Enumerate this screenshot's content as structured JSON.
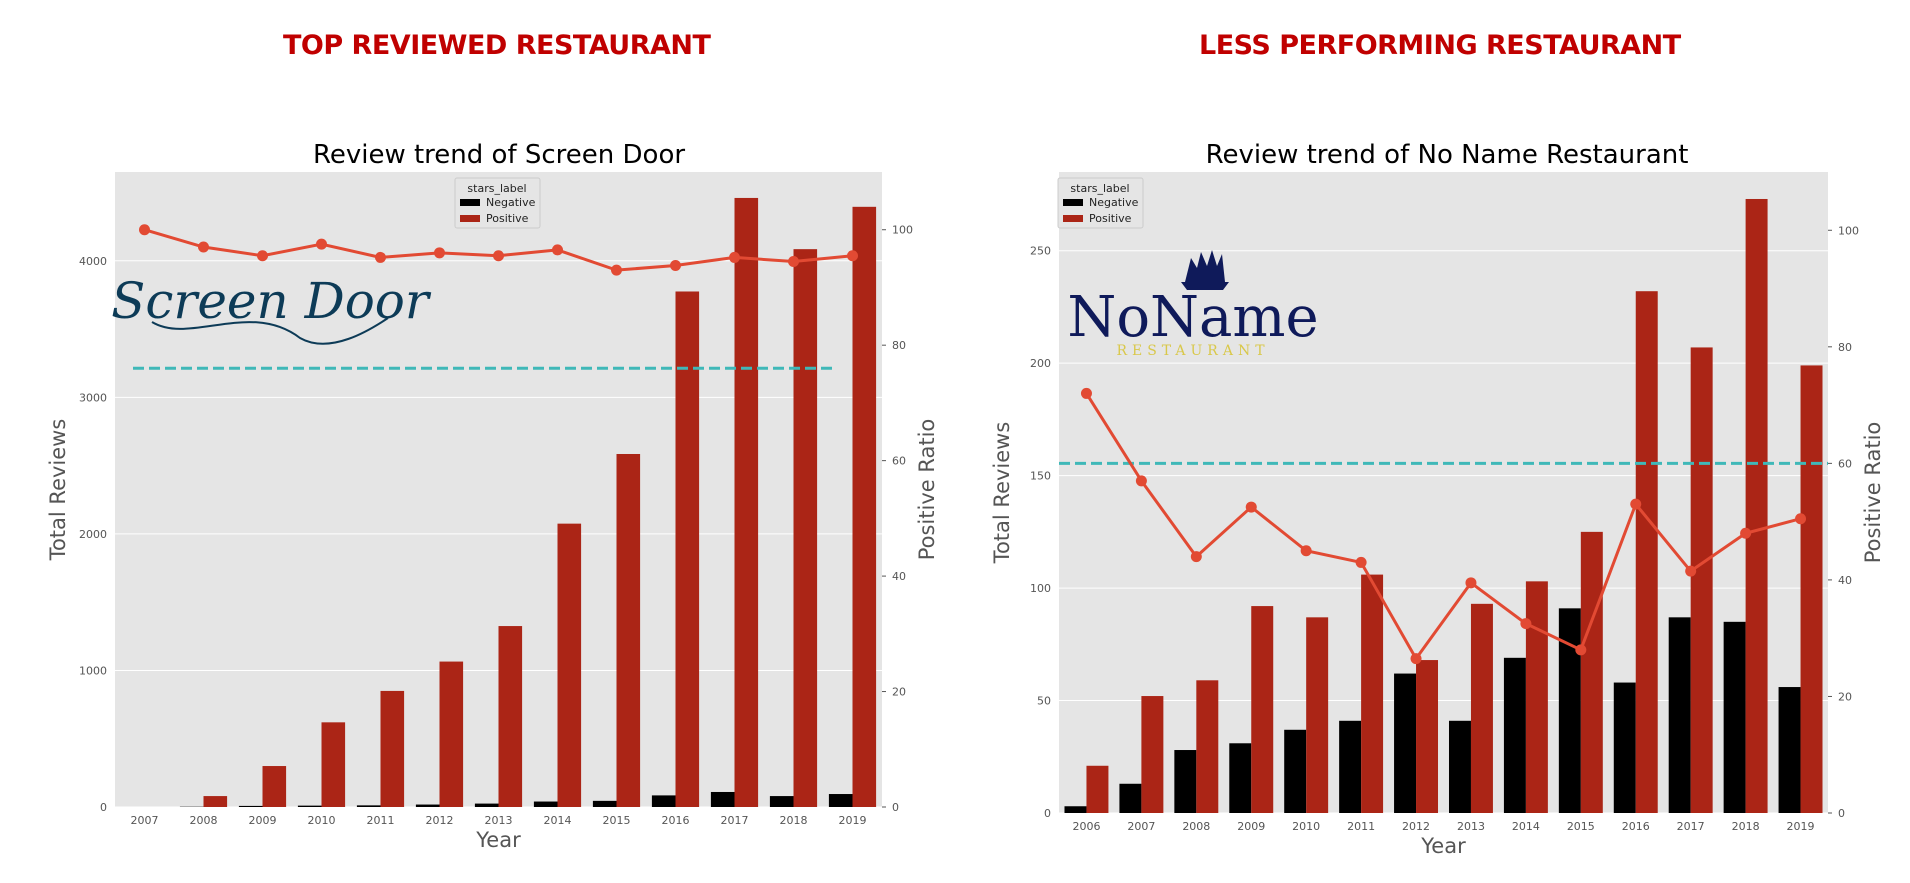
{
  "headings": {
    "left": "TOP REVIEWED RESTAURANT",
    "right": "LESS PERFORMING RESTAURANT"
  },
  "logos": {
    "left": "Screen Door",
    "right_main": "NoName",
    "right_sub": "RESTAURANT"
  },
  "colors": {
    "negative": "#000000",
    "positive": "#ab2516",
    "ratio_line": "#e24a33",
    "threshold": "#3fb8b8",
    "plot_bg": "#e5e5e5",
    "heading": "#c00000"
  },
  "chart_data": [
    {
      "type": "bar",
      "title": "Review trend of Screen Door",
      "xlabel": "Year",
      "ylabel": "Total Reviews",
      "y2label": "Positive Ratio",
      "categories": [
        "2007",
        "2008",
        "2009",
        "2010",
        "2011",
        "2012",
        "2013",
        "2014",
        "2015",
        "2016",
        "2017",
        "2018",
        "2019"
      ],
      "series": [
        {
          "name": "Negative",
          "values": [
            0,
            2,
            8,
            10,
            12,
            18,
            25,
            40,
            45,
            85,
            110,
            80,
            95
          ]
        },
        {
          "name": "Positive",
          "values": [
            0,
            80,
            300,
            620,
            850,
            1065,
            1325,
            2075,
            2585,
            3775,
            4460,
            4085,
            4395
          ]
        }
      ],
      "ratio": {
        "values": [
          100,
          97,
          95.5,
          97.5,
          95.2,
          96,
          95.5,
          96.5,
          93,
          93.8,
          95.2,
          94.5,
          95.5
        ]
      },
      "threshold": 76,
      "legend_title": "stars_label",
      "legend_position": "top-center",
      "ylim": [
        0,
        4650
      ],
      "y2lim": [
        0,
        110
      ],
      "yticks": [
        0,
        1000,
        2000,
        3000,
        4000
      ],
      "y2ticks": [
        0,
        20,
        40,
        60,
        80,
        100
      ],
      "grid": true
    },
    {
      "type": "bar",
      "title": "Review trend of No Name Restaurant",
      "xlabel": "Year",
      "ylabel": "Total Reviews",
      "y2label": "Positive Ratio",
      "categories": [
        "2006",
        "2007",
        "2008",
        "2009",
        "2010",
        "2011",
        "2012",
        "2013",
        "2014",
        "2015",
        "2016",
        "2017",
        "2018",
        "2019"
      ],
      "series": [
        {
          "name": "Negative",
          "values": [
            3,
            13,
            28,
            31,
            37,
            41,
            62,
            41,
            69,
            91,
            58,
            87,
            85,
            56
          ]
        },
        {
          "name": "Positive",
          "values": [
            21,
            52,
            59,
            92,
            87,
            106,
            68,
            93,
            103,
            125,
            232,
            207,
            273,
            199
          ]
        }
      ],
      "ratio": {
        "values": [
          72,
          57,
          44,
          52.5,
          45,
          43,
          26.5,
          39.5,
          32.5,
          28,
          53,
          41.5,
          48,
          50.5
        ]
      },
      "threshold": 60,
      "legend_title": "stars_label",
      "legend_position": "top-left",
      "ylim": [
        0,
        285
      ],
      "y2lim": [
        0,
        110
      ],
      "yticks": [
        0,
        50,
        100,
        150,
        200,
        250
      ],
      "y2ticks": [
        0,
        20,
        40,
        60,
        80,
        100
      ],
      "grid": true
    }
  ]
}
